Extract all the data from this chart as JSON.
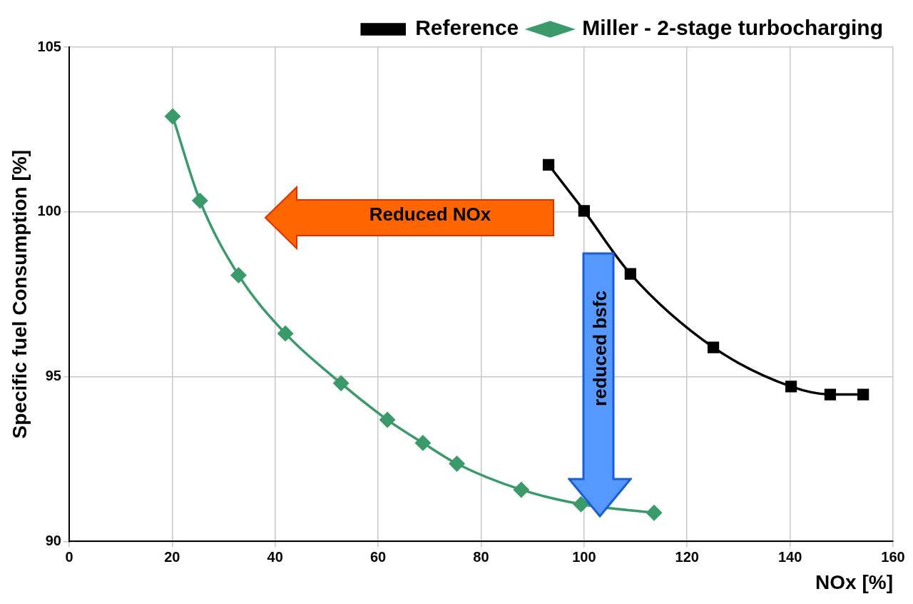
{
  "chart_data": {
    "type": "line",
    "xlabel": "NOx [%]",
    "ylabel": "Specific fuel Consumption [%]",
    "xlim": [
      0,
      160
    ],
    "xticks": [
      0,
      20,
      40,
      60,
      80,
      100,
      120,
      140,
      160
    ],
    "ylim": [
      90,
      105
    ],
    "yticks": [
      90,
      95,
      100,
      105
    ],
    "grid": true,
    "legend": "top right",
    "series": [
      {
        "name": "Reference",
        "color": "#000000",
        "marker": "square",
        "x": [
          93.1,
          100,
          109.0,
          125.1,
          140.2,
          147.8,
          154.2
        ],
        "values": [
          101.43,
          100.03,
          98.12,
          95.89,
          94.7,
          94.46,
          94.46
        ]
      },
      {
        "name": "Miller - 2-stage turbocharging",
        "color": "#3a9a6a",
        "marker": "diamond",
        "x": [
          20.1,
          25.4,
          32.9,
          42.0,
          52.8,
          61.8,
          68.7,
          75.3,
          87.8,
          99.4,
          113.6
        ],
        "values": [
          102.9,
          100.34,
          98.08,
          96.31,
          94.8,
          93.69,
          92.99,
          92.36,
          91.57,
          91.13,
          90.87
        ]
      }
    ],
    "annotations": [
      "Reduced NOx",
      "reduced bsfc"
    ]
  }
}
